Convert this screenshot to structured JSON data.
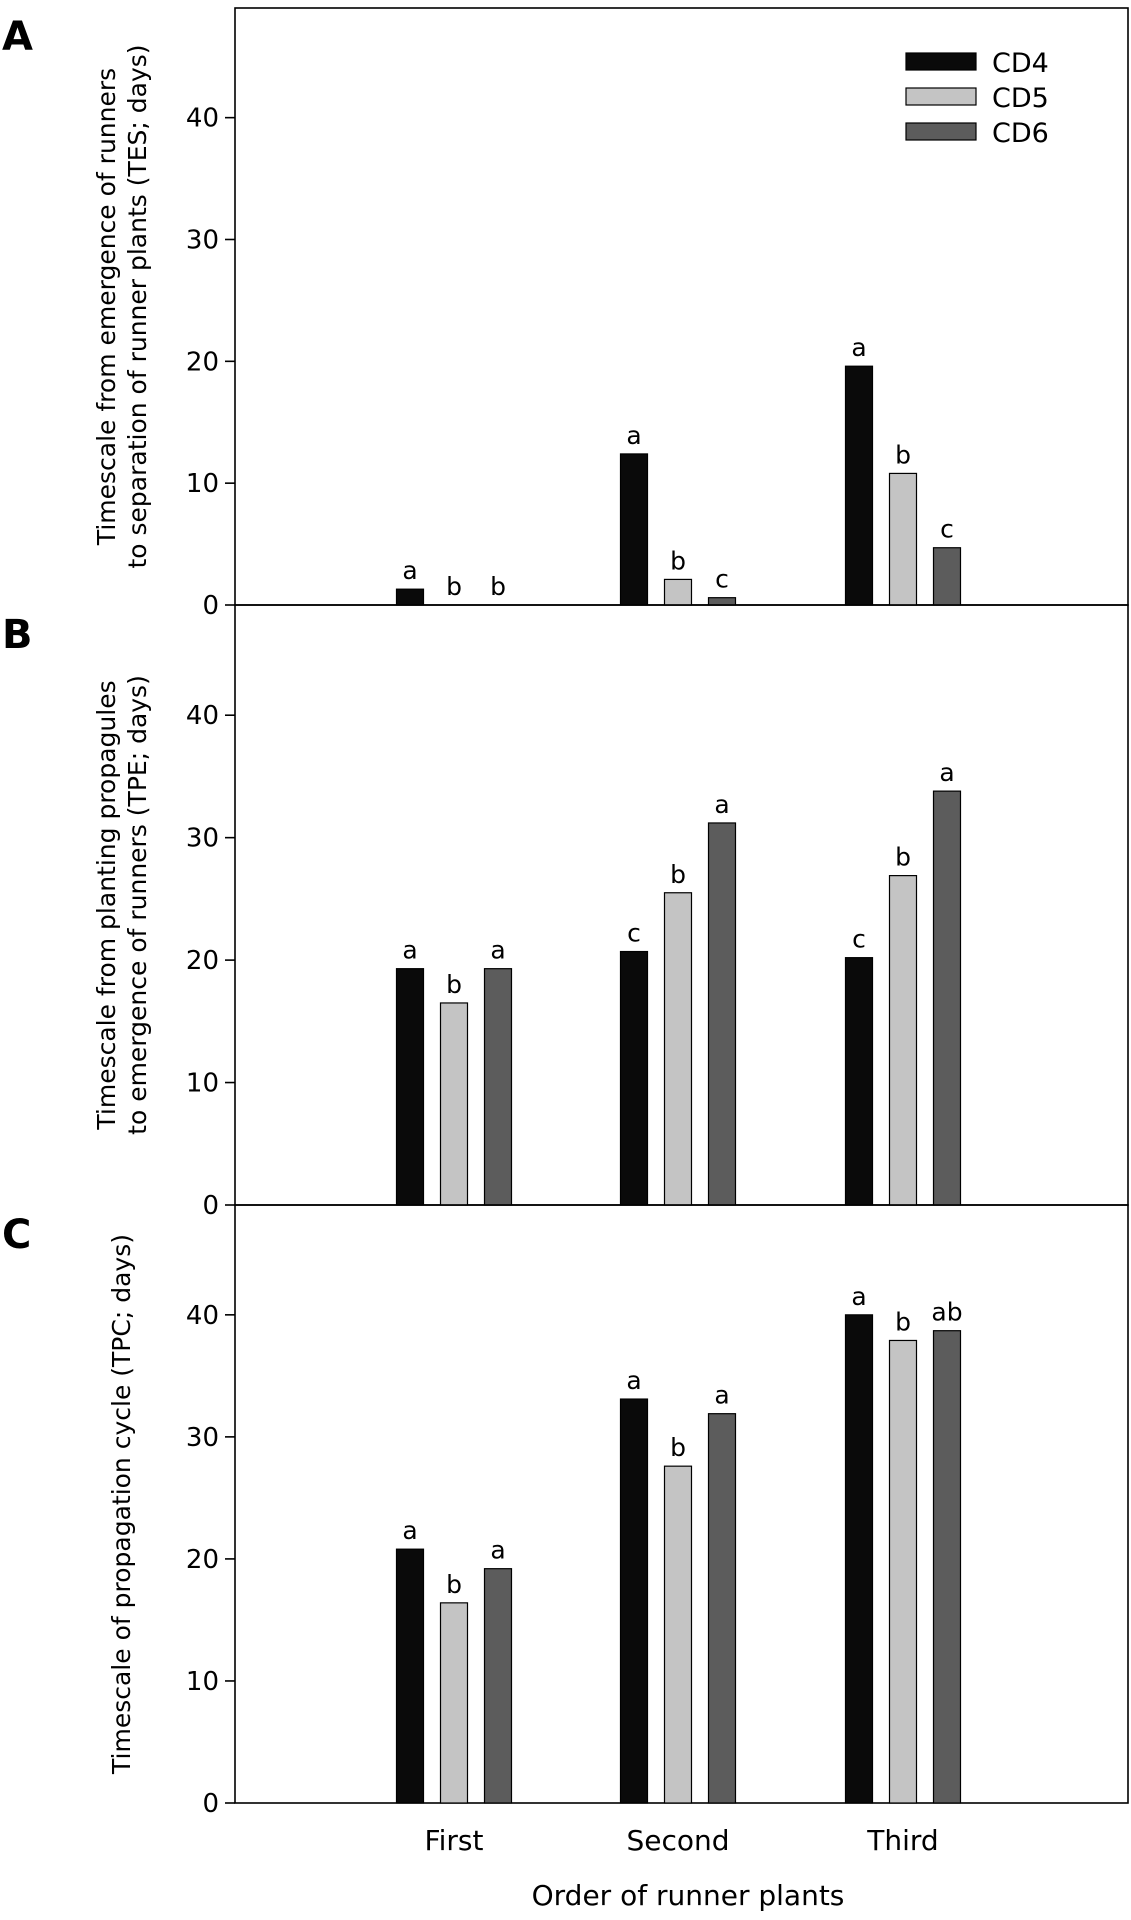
{
  "chart_data": {
    "type": "bar",
    "xlabel": "Order of runner plants",
    "categories": [
      "First",
      "Second",
      "Third"
    ],
    "legend": {
      "placement": "top-right",
      "entries": [
        "CD4",
        "CD5",
        "CD6"
      ]
    },
    "series_colors": [
      "#0a0a0a",
      "#c4c4c4",
      "#5c5c5c"
    ],
    "panels": [
      {
        "letter": "A",
        "ylabel_lines": [
          "Timescale from emergence of runners",
          "to separation of runner plants (TES; days)"
        ],
        "ylim": [
          0,
          49
        ],
        "yticks": [
          0,
          10,
          20,
          30,
          40
        ],
        "series": [
          {
            "name": "CD4",
            "values": [
              1.3,
              12.4,
              19.6
            ],
            "sig": [
              "a",
              "a",
              "a"
            ]
          },
          {
            "name": "CD5",
            "values": [
              0,
              2.1,
              10.8
            ],
            "sig": [
              "b",
              "b",
              "b"
            ]
          },
          {
            "name": "CD6",
            "values": [
              0,
              0.6,
              4.7
            ],
            "sig": [
              "b",
              "c",
              "c"
            ]
          }
        ]
      },
      {
        "letter": "B",
        "ylabel_lines": [
          "Timescale from planting propagules",
          "to emergence of runners (TPE; days)"
        ],
        "ylim": [
          0,
          49
        ],
        "yticks": [
          0,
          10,
          20,
          30,
          40
        ],
        "series": [
          {
            "name": "CD4",
            "values": [
              19.3,
              20.7,
              20.2
            ],
            "sig": [
              "a",
              "c",
              "c"
            ]
          },
          {
            "name": "CD5",
            "values": [
              16.5,
              25.5,
              26.9
            ],
            "sig": [
              "b",
              "b",
              "b"
            ]
          },
          {
            "name": "CD6",
            "values": [
              19.3,
              31.2,
              33.8
            ],
            "sig": [
              "a",
              "a",
              "a"
            ]
          }
        ]
      },
      {
        "letter": "C",
        "ylabel_lines": [
          "Timescale of propagation cycle (TPC; days)"
        ],
        "ylim": [
          0,
          49
        ],
        "yticks": [
          0,
          10,
          20,
          30,
          40
        ],
        "series": [
          {
            "name": "CD4",
            "values": [
              20.8,
              33.1,
              40.0
            ],
            "sig": [
              "a",
              "a",
              "a"
            ]
          },
          {
            "name": "CD5",
            "values": [
              16.4,
              27.6,
              37.9
            ],
            "sig": [
              "b",
              "b",
              "b"
            ]
          },
          {
            "name": "CD6",
            "values": [
              19.2,
              31.9,
              38.7
            ],
            "sig": [
              "a",
              "a",
              "ab"
            ]
          }
        ]
      }
    ]
  }
}
